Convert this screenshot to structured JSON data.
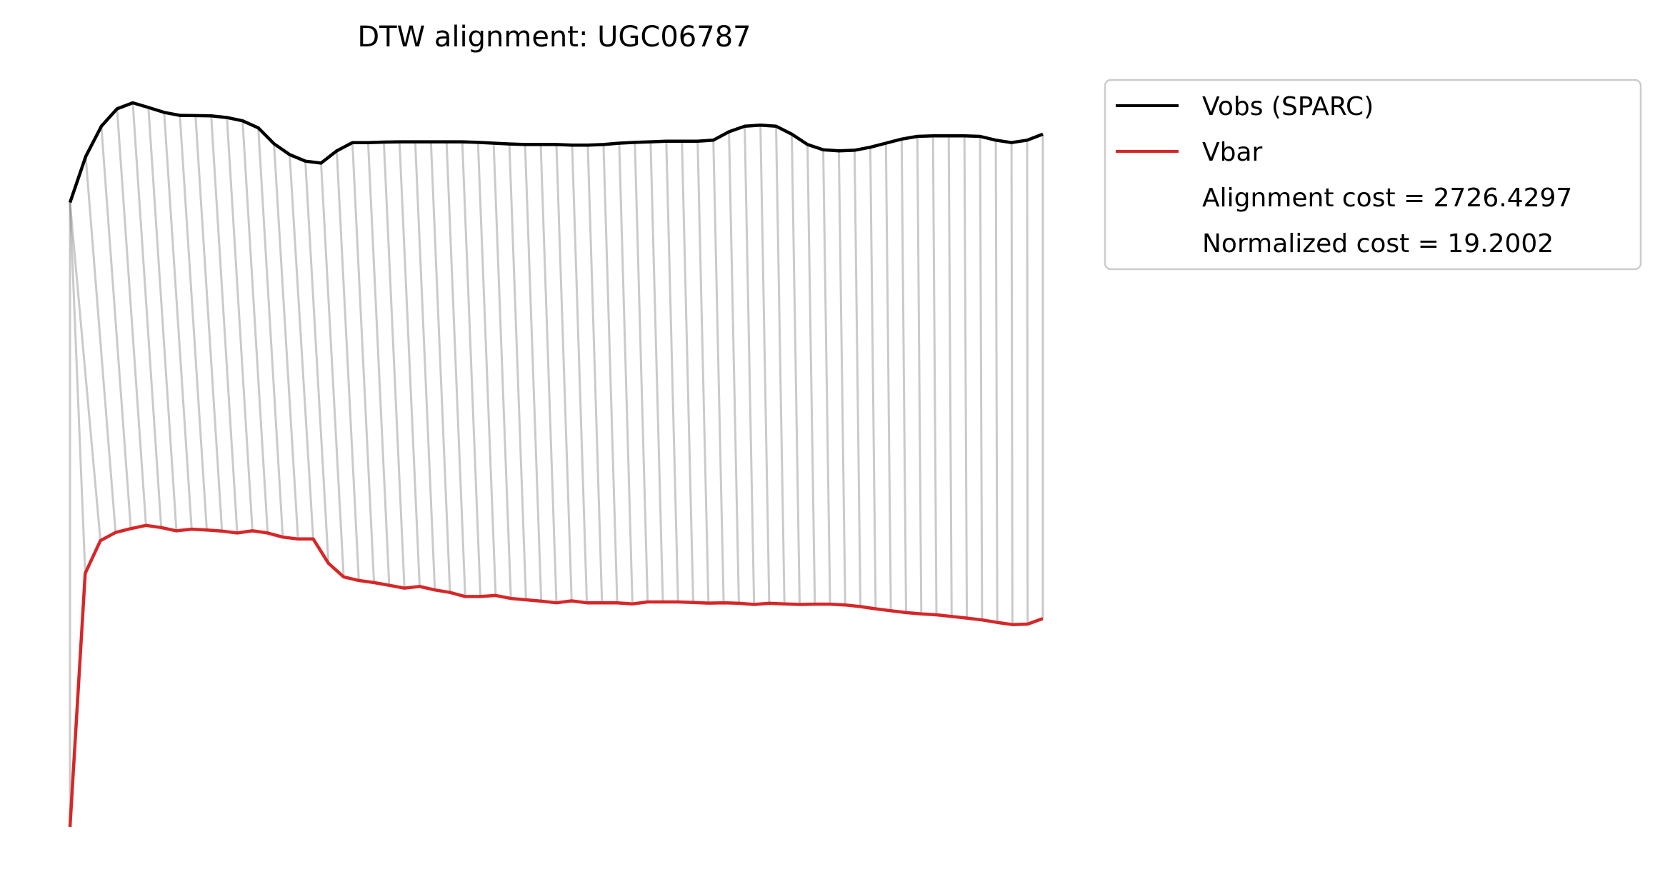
{
  "chart_data": {
    "type": "line",
    "title": "DTW alignment: UGC06787",
    "xlabel": "",
    "ylabel": "",
    "axes_visible": false,
    "grid": false,
    "legend_placement": "outside-top-right",
    "colors": {
      "vobs": "#000000",
      "vbar": "#d62728",
      "alignment_lines": "#808080"
    },
    "series": [
      {
        "name": "Vobs (SPARC)",
        "values": [
          268.0,
          284.9,
          296.0,
          302.4,
          304.6,
          302.9,
          301.1,
          300.0,
          299.9,
          299.8,
          299.2,
          298.0,
          295.4,
          289.6,
          285.6,
          283.2,
          282.5,
          287.0,
          290.0,
          290.0,
          290.2,
          290.3,
          290.3,
          290.3,
          290.3,
          290.3,
          290.1,
          289.8,
          289.5,
          289.3,
          289.3,
          289.3,
          289.1,
          289.1,
          289.3,
          289.8,
          290.1,
          290.3,
          290.5,
          290.5,
          290.5,
          290.9,
          294.0,
          296.0,
          296.4,
          296.0,
          293.1,
          289.3,
          287.4,
          287.0,
          287.2,
          288.3,
          289.8,
          291.3,
          292.3,
          292.5,
          292.5,
          292.5,
          292.3,
          290.9,
          290.0,
          290.9,
          293.1
        ]
      },
      {
        "name": "Vbar",
        "values": [
          39.0,
          132.0,
          144.0,
          147.0,
          148.4,
          149.6,
          148.8,
          147.6,
          148.2,
          147.9,
          147.5,
          146.8,
          147.6,
          146.8,
          145.3,
          144.6,
          144.6,
          135.7,
          130.7,
          129.4,
          128.6,
          127.6,
          126.6,
          127.2,
          125.9,
          125.0,
          123.5,
          123.5,
          123.9,
          122.8,
          122.3,
          121.8,
          121.2,
          121.9,
          121.2,
          121.2,
          121.2,
          120.8,
          121.5,
          121.5,
          121.5,
          121.3,
          121.1,
          121.2,
          121.0,
          120.6,
          121.0,
          120.8,
          120.6,
          120.7,
          120.7,
          120.4,
          119.8,
          119.0,
          118.3,
          117.6,
          117.1,
          116.8,
          116.2,
          115.6,
          114.9,
          114.0,
          113.2,
          113.4,
          115.4
        ]
      }
    ],
    "alignment_lines": "dynamic time warping pairs between Vobs and Vbar points",
    "legend": {
      "entries": [
        {
          "label": "Vobs (SPARC)",
          "color": "#000000",
          "marker": "line"
        },
        {
          "label": "Vbar",
          "color": "#d62728",
          "marker": "line"
        },
        {
          "label": "Alignment cost = 2726.4297",
          "color": "",
          "marker": "none"
        },
        {
          "label": "Normalized cost = 19.2002",
          "color": "",
          "marker": "none"
        }
      ]
    }
  }
}
